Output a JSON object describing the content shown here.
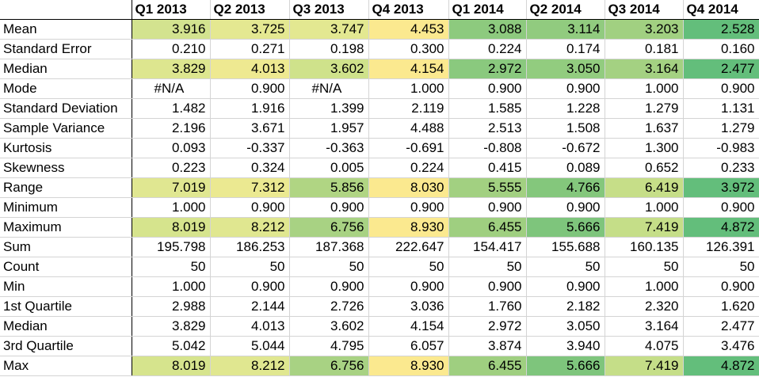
{
  "columns": [
    "",
    "Q1 2013",
    "Q2 2013",
    "Q3 2013",
    "Q4 2013",
    "Q1 2014",
    "Q2 2014",
    "Q3 2014",
    "Q4 2014"
  ],
  "rows": [
    {
      "label": "Mean",
      "values": [
        "3.916",
        "3.725",
        "3.747",
        "4.453",
        "3.088",
        "3.114",
        "3.203",
        "2.528"
      ],
      "colors": [
        "#d3e38f",
        "#e4e891",
        "#e3e891",
        "#fbe98f",
        "#8dca7e",
        "#91cb7f",
        "#a1d081",
        "#63be7b"
      ]
    },
    {
      "label": "Standard Error",
      "values": [
        "0.210",
        "0.271",
        "0.198",
        "0.300",
        "0.224",
        "0.174",
        "0.181",
        "0.160"
      ],
      "colors": null
    },
    {
      "label": "Median",
      "values": [
        "3.829",
        "4.013",
        "3.602",
        "4.154",
        "2.972",
        "3.050",
        "3.164",
        "2.477"
      ],
      "colors": [
        "#dde68f",
        "#eee991",
        "#cfe28b",
        "#fbe98f",
        "#8ac97e",
        "#92cc7f",
        "#a4d182",
        "#63be7b"
      ]
    },
    {
      "label": "Mode",
      "values": [
        "#N/A",
        "0.900",
        "#N/A",
        "1.000",
        "0.900",
        "0.900",
        "1.000",
        "0.900"
      ],
      "colors": null
    },
    {
      "label": "Standard Deviation",
      "values": [
        "1.482",
        "1.916",
        "1.399",
        "2.119",
        "1.585",
        "1.228",
        "1.279",
        "1.131"
      ],
      "colors": null
    },
    {
      "label": "Sample Variance",
      "values": [
        "2.196",
        "3.671",
        "1.957",
        "4.488",
        "2.513",
        "1.508",
        "1.637",
        "1.279"
      ],
      "colors": null
    },
    {
      "label": "Kurtosis",
      "values": [
        "0.093",
        "-0.337",
        "-0.363",
        "-0.691",
        "-0.808",
        "-0.672",
        "1.300",
        "-0.983"
      ],
      "colors": null
    },
    {
      "label": "Skewness",
      "values": [
        "0.223",
        "0.324",
        "0.005",
        "0.224",
        "0.415",
        "0.089",
        "0.652",
        "0.233"
      ],
      "colors": null
    },
    {
      "label": "Range",
      "values": [
        "7.019",
        "7.312",
        "5.856",
        "8.030",
        "5.555",
        "4.766",
        "6.419",
        "3.972"
      ],
      "colors": [
        "#e0e791",
        "#ebe991",
        "#b0d583",
        "#fbe98f",
        "#a2d081",
        "#84c77c",
        "#c6de88",
        "#63be7b"
      ]
    },
    {
      "label": "Minimum",
      "values": [
        "1.000",
        "0.900",
        "0.900",
        "0.900",
        "0.900",
        "0.900",
        "1.000",
        "0.900"
      ],
      "colors": null
    },
    {
      "label": "Maximum",
      "values": [
        "8.019",
        "8.212",
        "6.756",
        "8.930",
        "6.455",
        "5.666",
        "7.419",
        "4.872"
      ],
      "colors": [
        "#d6e48d",
        "#e0e790",
        "#a8d283",
        "#fbe98f",
        "#9fcf80",
        "#7ec57c",
        "#c5de88",
        "#63be7b"
      ]
    },
    {
      "label": "Sum",
      "values": [
        "195.798",
        "186.253",
        "187.368",
        "222.647",
        "154.417",
        "155.688",
        "160.135",
        "126.391"
      ],
      "colors": null
    },
    {
      "label": "Count",
      "values": [
        "50",
        "50",
        "50",
        "50",
        "50",
        "50",
        "50",
        "50"
      ],
      "colors": null
    },
    {
      "label": "Min",
      "values": [
        "1.000",
        "0.900",
        "0.900",
        "0.900",
        "0.900",
        "0.900",
        "1.000",
        "0.900"
      ],
      "colors": null,
      "separator": true
    },
    {
      "label": "1st Quartile",
      "values": [
        "2.988",
        "2.144",
        "2.726",
        "3.036",
        "1.760",
        "2.182",
        "2.320",
        "1.620"
      ],
      "colors": null
    },
    {
      "label": "Median",
      "values": [
        "3.829",
        "4.013",
        "3.602",
        "4.154",
        "2.972",
        "3.050",
        "3.164",
        "2.477"
      ],
      "colors": null
    },
    {
      "label": "3rd Quartile",
      "values": [
        "5.042",
        "5.044",
        "4.795",
        "6.057",
        "3.874",
        "3.940",
        "4.075",
        "3.476"
      ],
      "colors": null
    },
    {
      "label": "Max",
      "values": [
        "8.019",
        "8.212",
        "6.756",
        "8.930",
        "6.455",
        "5.666",
        "7.419",
        "4.872"
      ],
      "colors": [
        "#d6e48d",
        "#e0e790",
        "#a8d283",
        "#fbe98f",
        "#9fcf80",
        "#7ec57c",
        "#c5de88",
        "#63be7b"
      ]
    }
  ]
}
